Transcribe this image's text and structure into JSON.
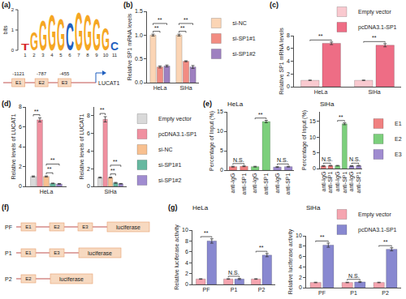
{
  "chart_data": [
    {
      "panel_label": "(b)",
      "type": "bar",
      "categories": [
        "HeLa",
        "SiHa"
      ],
      "series": [
        {
          "name": "si-NC",
          "color": "#fbd5b5",
          "values": [
            1.0,
            1.0
          ],
          "errors": [
            0.02,
            0.02
          ]
        },
        {
          "name": "si-SP1#1",
          "color": "#f28c82",
          "values": [
            0.33,
            0.45
          ],
          "errors": [
            0.02,
            0.01
          ]
        },
        {
          "name": "si-SP1#2",
          "color": "#9e80c0",
          "values": [
            0.35,
            0.33
          ],
          "errors": [
            0.02,
            0.03
          ]
        }
      ],
      "y_label": "Relative SP1 mRNA levels",
      "ylim": [
        0,
        1.5
      ],
      "yticks": [
        {
          "value": 0,
          "label": "0.0"
        },
        {
          "value": 0.5,
          "label": "0.5"
        },
        {
          "value": 1,
          "label": "1.0"
        },
        {
          "value": 1.5,
          "label": "1.5"
        }
      ],
      "grid": false,
      "legend": "right",
      "annotations": [
        {
          "text": "**",
          "category": "HeLa",
          "pair": [
            "si-NC",
            "si-SP1#1"
          ]
        },
        {
          "text": "**",
          "category": "HeLa",
          "pair": [
            "si-NC",
            "si-SP1#2"
          ]
        },
        {
          "text": "**",
          "category": "SiHa",
          "pair": [
            "si-NC",
            "si-SP1#1"
          ]
        },
        {
          "text": "**",
          "category": "SiHa",
          "pair": [
            "si-NC",
            "si-SP1#2"
          ]
        }
      ]
    },
    {
      "panel_label": "(c)",
      "type": "bar",
      "categories": [
        "HeLa",
        "SiHa"
      ],
      "series": [
        {
          "name": "Empty vector",
          "color": "#f9c9cf",
          "values": [
            1.0,
            1.0
          ],
          "errors": [
            0.03,
            0.03
          ]
        },
        {
          "name": "pcDNA3.1-SP1",
          "color": "#ee6d85",
          "values": [
            6.8,
            6.5
          ],
          "errors": [
            0.2,
            0.25
          ]
        }
      ],
      "y_label": "Relative SP1 mRNA levels",
      "ylim": [
        0,
        8
      ],
      "yticks": [
        0,
        2,
        4,
        6,
        8
      ],
      "grid": false,
      "legend": "top",
      "annotations": [
        {
          "text": "**",
          "category": "HeLa",
          "pair": [
            "Empty vector",
            "pcDNA3.1-SP1"
          ]
        },
        {
          "text": "**",
          "category": "SiHa",
          "pair": [
            "Empty vector",
            "pcDNA3.1-SP1"
          ]
        }
      ]
    },
    {
      "panel_label": "(d)",
      "type": "bar",
      "categories": [
        "HeLa"
      ],
      "series": [
        {
          "name": "Empty vector",
          "color": "#d9d9d9",
          "values": [
            1.0
          ],
          "errors": [
            0.05
          ]
        },
        {
          "name": "pcDNA3.1-SP1",
          "color": "#f090a0",
          "values": [
            6.7
          ],
          "errors": [
            0.2
          ]
        },
        {
          "name": "si-NC",
          "color": "#f8c090",
          "values": [
            1.0
          ],
          "errors": [
            0.05
          ]
        },
        {
          "name": "si-SP1#1",
          "color": "#66b8a0",
          "values": [
            0.3
          ],
          "errors": [
            0.03
          ]
        },
        {
          "name": "si-SP1#2",
          "color": "#a08cd0",
          "values": [
            0.25
          ],
          "errors": [
            0.03
          ]
        }
      ],
      "y_label": "Relative levels of LUCAT1",
      "ylim": [
        0,
        8
      ],
      "yticks": [
        0,
        2,
        4,
        6,
        8
      ],
      "grid": false,
      "annotations": [
        {
          "text": "**",
          "category": "HeLa",
          "pair": [
            "Empty vector",
            "pcDNA3.1-SP1"
          ]
        },
        {
          "text": "**",
          "category": "HeLa",
          "pair": [
            "si-NC",
            "si-SP1#1"
          ]
        },
        {
          "text": "**",
          "category": "HeLa",
          "pair": [
            "si-NC",
            "si-SP1#2"
          ]
        }
      ]
    },
    {
      "type": "bar",
      "categories": [
        "SiHa"
      ],
      "series": [
        {
          "name": "Empty vector",
          "color": "#d9d9d9",
          "values": [
            1.0
          ],
          "errors": [
            0.05
          ]
        },
        {
          "name": "pcDNA3.1-SP1",
          "color": "#f090a0",
          "values": [
            7.6
          ],
          "errors": [
            0.3
          ]
        },
        {
          "name": "si-NC",
          "color": "#f8c090",
          "values": [
            1.0
          ],
          "errors": [
            0.05
          ]
        },
        {
          "name": "si-SP1#1",
          "color": "#66b8a0",
          "values": [
            0.4
          ],
          "errors": [
            0.05
          ]
        },
        {
          "name": "si-SP1#2",
          "color": "#a08cd0",
          "values": [
            0.3
          ],
          "errors": [
            0.03
          ]
        }
      ],
      "y_label": "Relative levels of LUCAT1",
      "ylim": [
        0,
        9
      ],
      "yticks": [
        0,
        2,
        4,
        6,
        8
      ],
      "grid": false,
      "legend": "right",
      "annotations": [
        {
          "text": "**",
          "category": "SiHa",
          "pair": [
            "Empty vector",
            "pcDNA3.1-SP1"
          ]
        },
        {
          "text": "**",
          "category": "SiHa",
          "pair": [
            "si-NC",
            "si-SP1#1"
          ]
        },
        {
          "text": "**",
          "category": "SiHa",
          "pair": [
            "si-NC",
            "si-SP1#2"
          ]
        }
      ]
    },
    {
      "panel_label": "(e)",
      "type": "bar",
      "title": "HeLa",
      "categories": [
        "anti-IgG",
        "anti-SP1",
        "anti-IgG",
        "anti-SP1",
        "anti-IgG",
        "anti-SP1"
      ],
      "series": [
        {
          "name": "E1",
          "color": "#f08080",
          "values": [
            0.9,
            1.0,
            null,
            null,
            null,
            null
          ],
          "errors": [
            0.1,
            0.1,
            null,
            null,
            null,
            null
          ]
        },
        {
          "name": "E2",
          "color": "#7ccf7c",
          "values": [
            null,
            null,
            0.9,
            12.5,
            null,
            null
          ],
          "errors": [
            null,
            null,
            0.1,
            0.3,
            null,
            null
          ]
        },
        {
          "name": "E3",
          "color": "#a08cd0",
          "values": [
            null,
            null,
            null,
            null,
            0.8,
            0.9
          ],
          "errors": [
            null,
            null,
            null,
            null,
            0.1,
            0.1
          ]
        }
      ],
      "y_label": "Percentage of Input (%)",
      "ylim": [
        0,
        15
      ],
      "yticks": [
        0,
        5,
        10,
        15
      ],
      "grid": false,
      "annotations": [
        {
          "text": "N.S.",
          "series": "E1"
        },
        {
          "text": "**",
          "series": "E2"
        },
        {
          "text": "N.S.",
          "series": "E3"
        }
      ]
    },
    {
      "type": "bar",
      "title": "SiHa",
      "categories": [
        "anti-IgG",
        "anti-SP1",
        "anti-IgG",
        "anti-SP1",
        "anti-IgG",
        "anti-SP1"
      ],
      "series": [
        {
          "name": "E1",
          "color": "#f08080",
          "values": [
            0.8,
            0.9,
            null,
            null,
            null,
            null
          ],
          "errors": [
            0.1,
            0.1,
            null,
            null,
            null,
            null
          ]
        },
        {
          "name": "E2",
          "color": "#7ccf7c",
          "values": [
            null,
            null,
            0.9,
            14.2,
            null,
            null
          ],
          "errors": [
            null,
            null,
            0.1,
            0.3,
            null,
            null
          ]
        },
        {
          "name": "E3",
          "color": "#a08cd0",
          "values": [
            null,
            null,
            null,
            null,
            0.8,
            0.9
          ],
          "errors": [
            null,
            null,
            null,
            null,
            0.1,
            0.1
          ]
        }
      ],
      "y_label": "Percentage of Input (%)",
      "ylim": [
        0,
        18
      ],
      "yticks": [
        0,
        5,
        10,
        15
      ],
      "grid": false,
      "legend": "right",
      "annotations": [
        {
          "text": "N.S.",
          "series": "E1"
        },
        {
          "text": "**",
          "series": "E2"
        },
        {
          "text": "N.S.",
          "series": "E3"
        }
      ]
    },
    {
      "panel_label": "(g)",
      "type": "bar",
      "title": "HeLa",
      "categories": [
        "PF",
        "P1",
        "P2"
      ],
      "series": [
        {
          "name": "Empty vector",
          "color": "#f5a5b0",
          "values": [
            1.0,
            1.0,
            1.0
          ],
          "errors": [
            0.05,
            0.05,
            0.05
          ]
        },
        {
          "name": "pcDNA3.1-SP1",
          "color": "#8888d0",
          "values": [
            8.0,
            1.0,
            5.4
          ],
          "errors": [
            0.4,
            0.1,
            0.3
          ]
        }
      ],
      "y_label": "Relative luciferase activity",
      "ylim": [
        0,
        10
      ],
      "yticks": [
        0,
        2,
        4,
        6,
        8,
        10
      ],
      "grid": false,
      "annotations": [
        {
          "text": "**",
          "category": "PF",
          "pair": [
            "Empty vector",
            "pcDNA3.1-SP1"
          ]
        },
        {
          "text": "N.S.",
          "category": "P1",
          "pair": [
            "Empty vector",
            "pcDNA3.1-SP1"
          ]
        },
        {
          "text": "**",
          "category": "P2",
          "pair": [
            "Empty vector",
            "pcDNA3.1-SP1"
          ]
        }
      ]
    },
    {
      "type": "bar",
      "title": "SiHa",
      "categories": [
        "PF",
        "P1",
        "P2"
      ],
      "series": [
        {
          "name": "Empty vector",
          "color": "#f5a5b0",
          "values": [
            1.0,
            1.0,
            1.0
          ],
          "errors": [
            0.05,
            0.05,
            0.05
          ]
        },
        {
          "name": "pcDNA3.1-SP1",
          "color": "#8888d0",
          "values": [
            8.2,
            1.1,
            7.4
          ],
          "errors": [
            0.4,
            0.1,
            0.3
          ]
        }
      ],
      "y_label": "Relative luciferase activity",
      "ylim": [
        0,
        10
      ],
      "yticks": [
        0,
        2,
        4,
        6,
        8,
        10
      ],
      "grid": false,
      "legend": "top",
      "annotations": [
        {
          "text": "**",
          "category": "PF",
          "pair": [
            "Empty vector",
            "pcDNA3.1-SP1"
          ]
        },
        {
          "text": "N.S.",
          "category": "P1",
          "pair": [
            "Empty vector",
            "pcDNA3.1-SP1"
          ]
        },
        {
          "text": "**",
          "category": "P2",
          "pair": [
            "Empty vector",
            "pcDNA3.1-SP1"
          ]
        }
      ]
    }
  ],
  "diagrams": {
    "logo": {
      "panel_label": "(a)",
      "y_label": "bits",
      "ylim": [
        0,
        2
      ],
      "yticks": [
        0,
        1,
        2
      ],
      "positions": [
        1,
        2,
        3,
        4,
        5,
        6,
        7,
        8,
        9,
        10,
        11
      ],
      "letters": [
        "T",
        "G",
        "G",
        "G",
        "G",
        "C",
        "G",
        "G",
        "G",
        "G",
        "C"
      ],
      "heights": [
        0.3,
        0.9,
        1.5,
        1.8,
        1.6,
        1.4,
        1.9,
        1.8,
        1.6,
        1.1,
        0.4
      ]
    },
    "promoter": {
      "elements": [
        {
          "label": "E1",
          "position": -1121
        },
        {
          "label": "E2",
          "position": -787
        },
        {
          "label": "E3",
          "position": -455
        }
      ],
      "gene": "LUCAT1"
    },
    "constructs": {
      "panel_label": "(f)",
      "reporter": "luciferase",
      "items": [
        {
          "name": "PF",
          "elements": [
            "E1",
            "E2",
            "E3"
          ]
        },
        {
          "name": "P1",
          "elements": [
            "E1",
            "E3"
          ]
        },
        {
          "name": "P2",
          "elements": [
            "E2"
          ]
        }
      ]
    }
  }
}
